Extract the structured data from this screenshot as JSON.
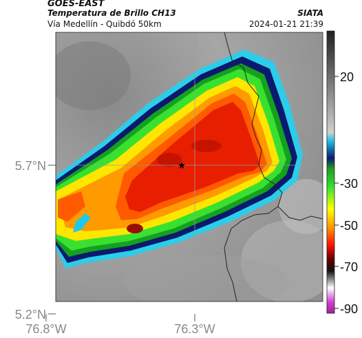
{
  "header": {
    "satellite": "GOES-EAST",
    "product": "Temperatura de Brillo CH13",
    "region": "Vía Medellín - Quibdó 50km",
    "brand": "SIATA",
    "timestamp": "2024-01-21 21:39"
  },
  "map": {
    "lat_ticks": [
      "5.7°N",
      "5.2°N"
    ],
    "lon_ticks": [
      "76.8°W",
      "76.3°W"
    ],
    "marker": "star-marker"
  },
  "colorbar": {
    "ticks": [
      "20",
      "-30",
      "-50",
      "-70",
      "-90"
    ],
    "unit_scale": "brightness temperature °C"
  },
  "colors": {
    "cold_core": "#e81e00",
    "orange": "#ff7a00",
    "yellow": "#ffe600",
    "green": "#20d020",
    "cyan": "#22c8e8",
    "navy": "#0b1a6e",
    "warm_gray": "#9a9a9a"
  }
}
